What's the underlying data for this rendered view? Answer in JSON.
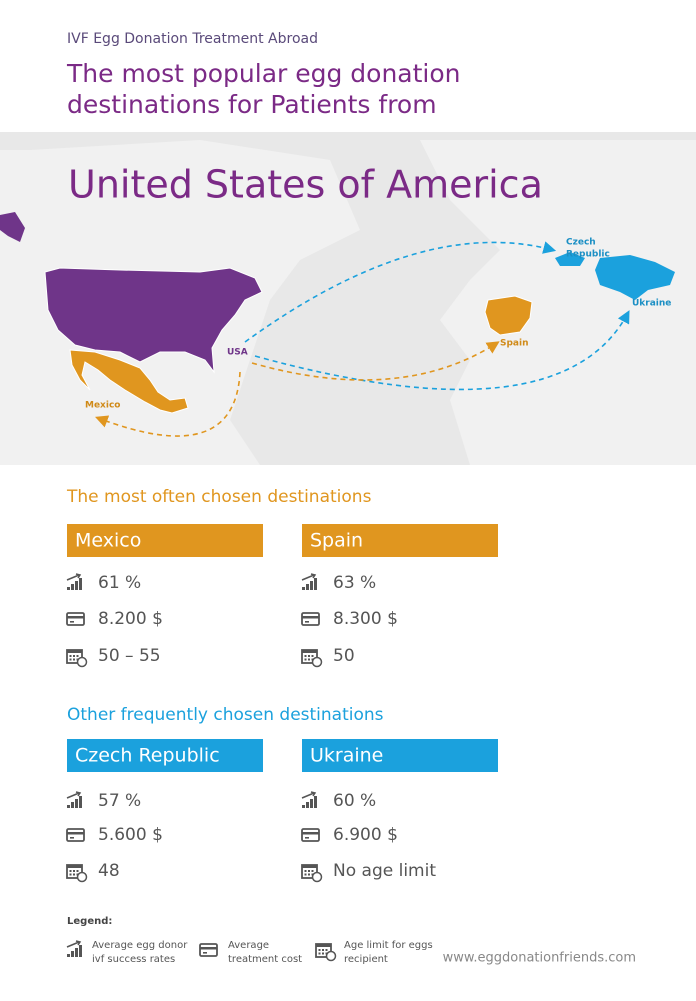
{
  "header": {
    "kicker": "IVF Egg Donation Treatment Abroad",
    "title_lines": [
      "The most popular egg donation",
      "destinations for Patients from"
    ]
  },
  "map": {
    "country": "United States of America",
    "labels": {
      "usa": "USA",
      "mexico": "Mexico",
      "spain": "Spain",
      "czech": [
        "Czech",
        "Republic"
      ],
      "ukraine": "Ukraine"
    }
  },
  "sections": [
    {
      "heading": "The most often chosen destinations",
      "destinations": [
        {
          "name": "Mexico",
          "success_rate": "61 %",
          "cost": "8.200 $",
          "age_limit": "50 – 55"
        },
        {
          "name": "Spain",
          "success_rate": "63 %",
          "cost": "8.300 $",
          "age_limit": "50"
        }
      ]
    },
    {
      "heading": "Other frequently chosen destinations",
      "destinations": [
        {
          "name": "Czech Republic",
          "success_rate": "57 %",
          "cost": "5.600 $",
          "age_limit": "48"
        },
        {
          "name": "Ukraine",
          "success_rate": "60 %",
          "cost": "6.900 $",
          "age_limit": "No age limit"
        }
      ]
    }
  ],
  "legend": {
    "title": "Legend:",
    "items": [
      {
        "lines": [
          "Average egg donor",
          "ivf success rates"
        ]
      },
      {
        "lines": [
          "Average",
          "treatment cost"
        ]
      },
      {
        "lines": [
          "Age limit for eggs",
          "recipient"
        ]
      }
    ]
  },
  "footer": {
    "url": "www.eggdonationfriends.com"
  }
}
